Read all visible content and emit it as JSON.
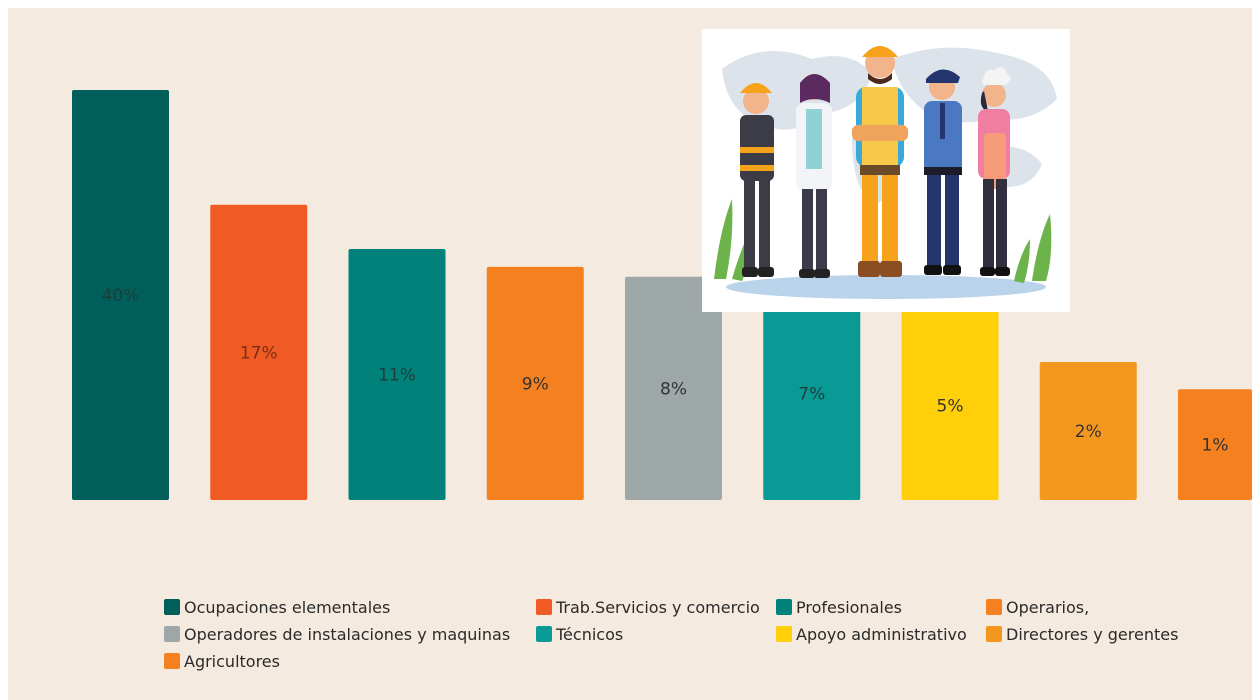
{
  "chart_data": {
    "type": "bar",
    "categories": [
      "Ocupaciones elementales",
      "Trab.Servicios y comercio",
      "Profesionales",
      "Operarios,",
      "Operadores de instalaciones y maquinas",
      "Técnicos",
      "Apoyo administrativo",
      "Directores y gerentes",
      "Agricultores"
    ],
    "values": [
      40,
      17,
      11,
      9,
      8,
      7,
      5,
      2,
      1
    ],
    "data_labels": [
      "40%",
      "17%",
      "11%",
      "9%",
      "8%",
      "7%",
      "5%",
      "2%",
      "1%"
    ],
    "colors": [
      "#005f5a",
      "#f05a24",
      "#00827a",
      "#f4801f",
      "#9ea8a8",
      "#0a9a96",
      "#ffd00a",
      "#f4971f",
      "#f4801f"
    ],
    "label_colors": [
      "#1c3d3a",
      "#7a2e12",
      "#1c3d3a",
      "#333333",
      "#333333",
      "#1c3d3a",
      "#333333",
      "#333333",
      "#333333"
    ],
    "title": "",
    "xlabel": "",
    "ylabel": "",
    "grid": false,
    "legend_position": "bottom"
  },
  "illustration": {
    "description_icon": "workers-illustration-icon"
  }
}
